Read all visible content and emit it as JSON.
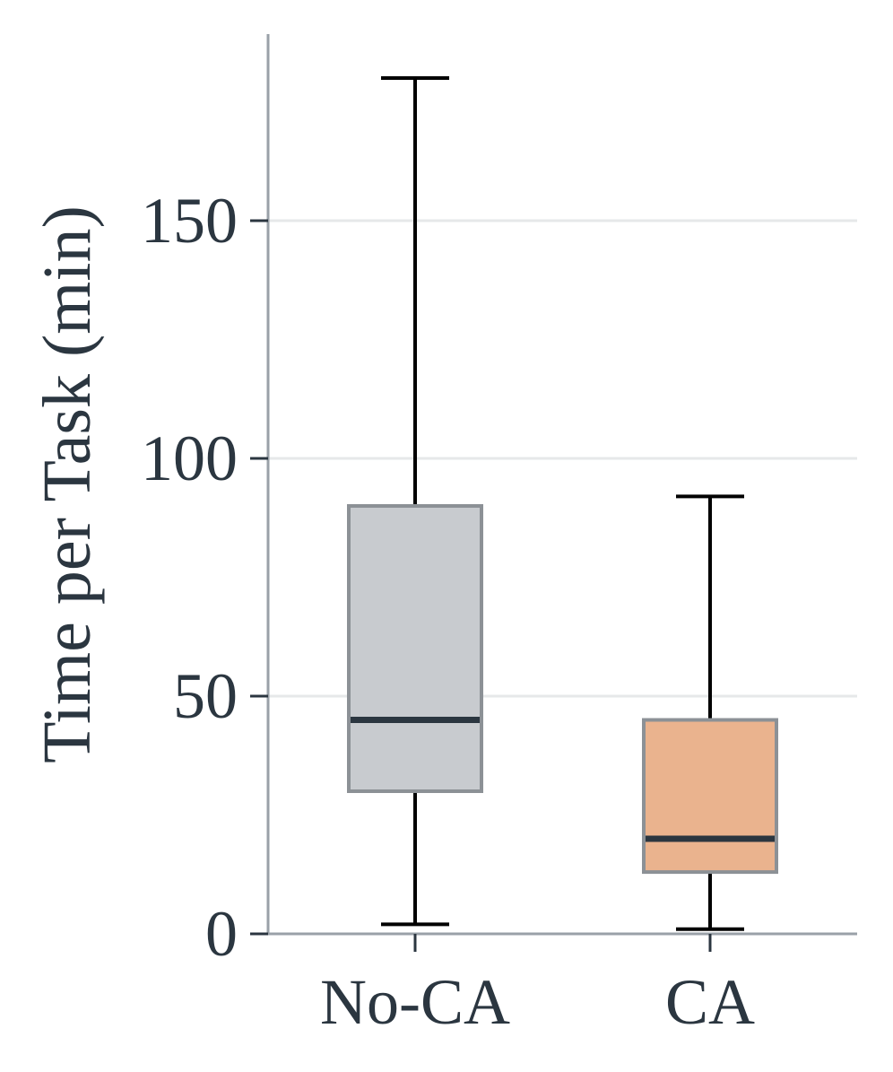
{
  "chart_data": {
    "type": "box",
    "title": "",
    "xlabel": "",
    "ylabel": "Time per Task (min)",
    "ylim": [
      0,
      188
    ],
    "y_ticks": [
      0,
      50,
      100,
      150
    ],
    "y_tick_labels": [
      "0",
      "50",
      "100",
      "150"
    ],
    "grid": "horizontal",
    "categories": [
      "No-CA",
      "CA"
    ],
    "boxes": [
      {
        "category": "No-CA",
        "whisker_low": 2,
        "q1": 30,
        "median": 45,
        "q3": 90,
        "whisker_high": 180,
        "color": "#c8cbcf"
      },
      {
        "category": "CA",
        "whisker_low": 1,
        "q1": 13,
        "median": 20,
        "q3": 45,
        "whisker_high": 92,
        "color": "#eab38e"
      }
    ]
  },
  "colors": {
    "axis": "#9aa1a8",
    "grid": "#e6e8e9",
    "box_edge": "#8c9196",
    "median": "#2b3640",
    "whisker": "#000000",
    "text": "#2b3640"
  }
}
